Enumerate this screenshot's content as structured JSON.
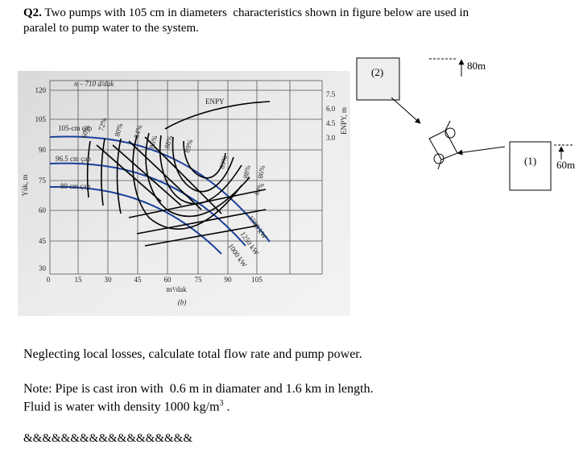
{
  "question": {
    "number": "Q2.",
    "lines": [
      "Two pumps with 105 cm in diameters  characteristics shown in figure below are used in",
      "paralel to pump water to the system."
    ]
  },
  "figure": {
    "speed_label": "n – 710 d/dak",
    "npsh_label": "ENPY",
    "diameters": [
      "105-cm çap",
      "96.5 cm çap",
      "89 cm çap"
    ],
    "head_axis_label": "Yük, m",
    "head_ticks": [
      "120",
      "105",
      "90",
      "75",
      "60",
      "45",
      "30"
    ],
    "flow_ticks": [
      "0",
      "15",
      "30",
      "45",
      "60",
      "75",
      "90",
      "105"
    ],
    "flow_axis_label": "m³/dak",
    "caption": "(b)",
    "npsh_ticks": [
      "7.5",
      "6.0",
      "4.5",
      "3.0"
    ],
    "npsh_axis_label": "ENPY, m",
    "efficiencies": [
      "60%",
      "72%",
      "80%",
      "84%",
      "86%",
      "88%",
      "89%",
      "89%",
      "88%",
      "86%",
      "84%"
    ],
    "powers": [
      "1500 kW",
      "1250 kW",
      "1000 kW"
    ]
  },
  "diagram": {
    "upper_tank": "(2)",
    "upper_height": "80m",
    "lower_tank": "(1)",
    "lower_height": "60m"
  },
  "task": "Neglecting local losses, calculate total flow rate and pump power.",
  "note": {
    "line1": "Note: Pipe is cast iron with  0.6 m in diamater and 1.6 km in length.",
    "line2": "Fluid is water with density 1000 kg/m",
    "superscript": "3",
    "line2_end": " ."
  },
  "footer": "&&&&&&&&&&&&&&&&&&"
}
